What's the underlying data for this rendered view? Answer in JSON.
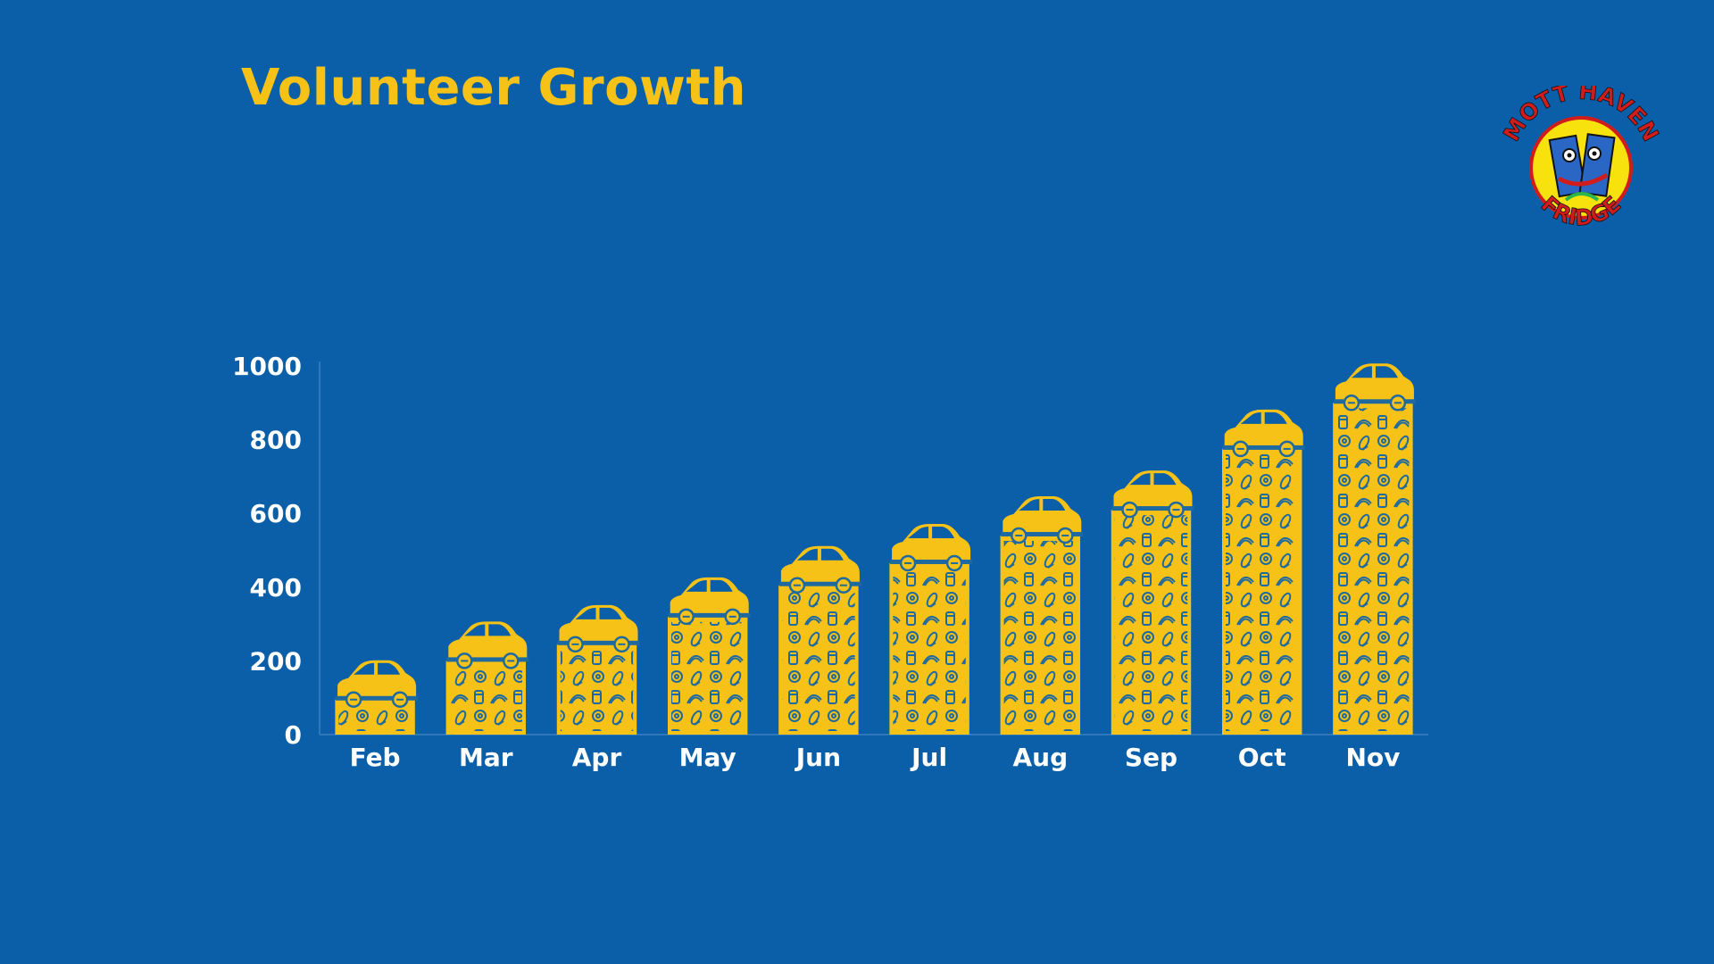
{
  "title": "Volunteer Growth",
  "logo": {
    "top_text": "MOTT HAVEN",
    "bottom_text": "FRIDGE"
  },
  "colors": {
    "background": "#0a5fa8",
    "bar": "#f6c218",
    "pattern": "#1e6aa0",
    "text": "#ffffff",
    "title": "#f6c218"
  },
  "chart_data": {
    "type": "bar",
    "title": "Volunteer Growth",
    "xlabel": "",
    "ylabel": "",
    "categories": [
      "Feb",
      "Mar",
      "Apr",
      "May",
      "Jun",
      "Jul",
      "Aug",
      "Sep",
      "Oct",
      "Nov"
    ],
    "values": [
      95,
      200,
      245,
      320,
      405,
      465,
      540,
      610,
      775,
      900
    ],
    "ylim": [
      0,
      1000
    ],
    "yticks": [
      0,
      200,
      400,
      600,
      800,
      1000
    ],
    "grid": false,
    "legend": "none",
    "bar_icon": "car-icon",
    "bar_fill": "food-pattern"
  }
}
